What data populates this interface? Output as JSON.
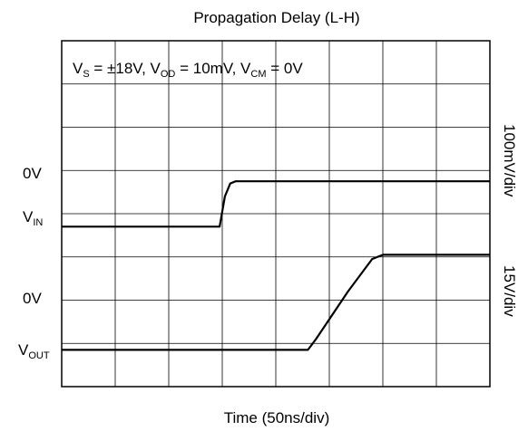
{
  "chart_data": {
    "type": "line",
    "title": "Propagation Delay (L-H)",
    "xlabel": "Time (50ns/div)",
    "conditions": {
      "vs_main": "V",
      "vs_sub": "S",
      "vs_val": " = ±18V, ",
      "vod_main": "V",
      "vod_sub": "OD",
      "vod_val": " = 10mV, ",
      "vcm_main": "V",
      "vcm_sub": "CM",
      "vcm_val": " = 0V"
    },
    "right_labels": {
      "upper": "100mV/div",
      "lower": "15V/div"
    },
    "left_labels": {
      "vin_zero": "0V",
      "vin_main": "V",
      "vin_sub": "IN",
      "vout_zero": "0V",
      "vout_main": "V",
      "vout_sub": "OUT"
    },
    "grid": {
      "x_divisions": 8,
      "y_divisions": 8,
      "show": true
    },
    "x_range_div": [
      0,
      8
    ],
    "y_range_div": [
      0,
      8
    ],
    "series": [
      {
        "name": "VIN",
        "x": [
          0,
          2.85,
          2.95,
          3.0,
          3.05,
          3.15,
          3.25,
          8.0
        ],
        "y": [
          3.7,
          3.7,
          3.7,
          4.05,
          4.4,
          4.7,
          4.75,
          4.75
        ]
      },
      {
        "name": "VOUT",
        "x": [
          0,
          4.6,
          4.75,
          5.35,
          5.8,
          6.0,
          8.0
        ],
        "y": [
          0.85,
          0.85,
          1.1,
          2.2,
          2.95,
          3.05,
          3.05
        ]
      }
    ]
  }
}
